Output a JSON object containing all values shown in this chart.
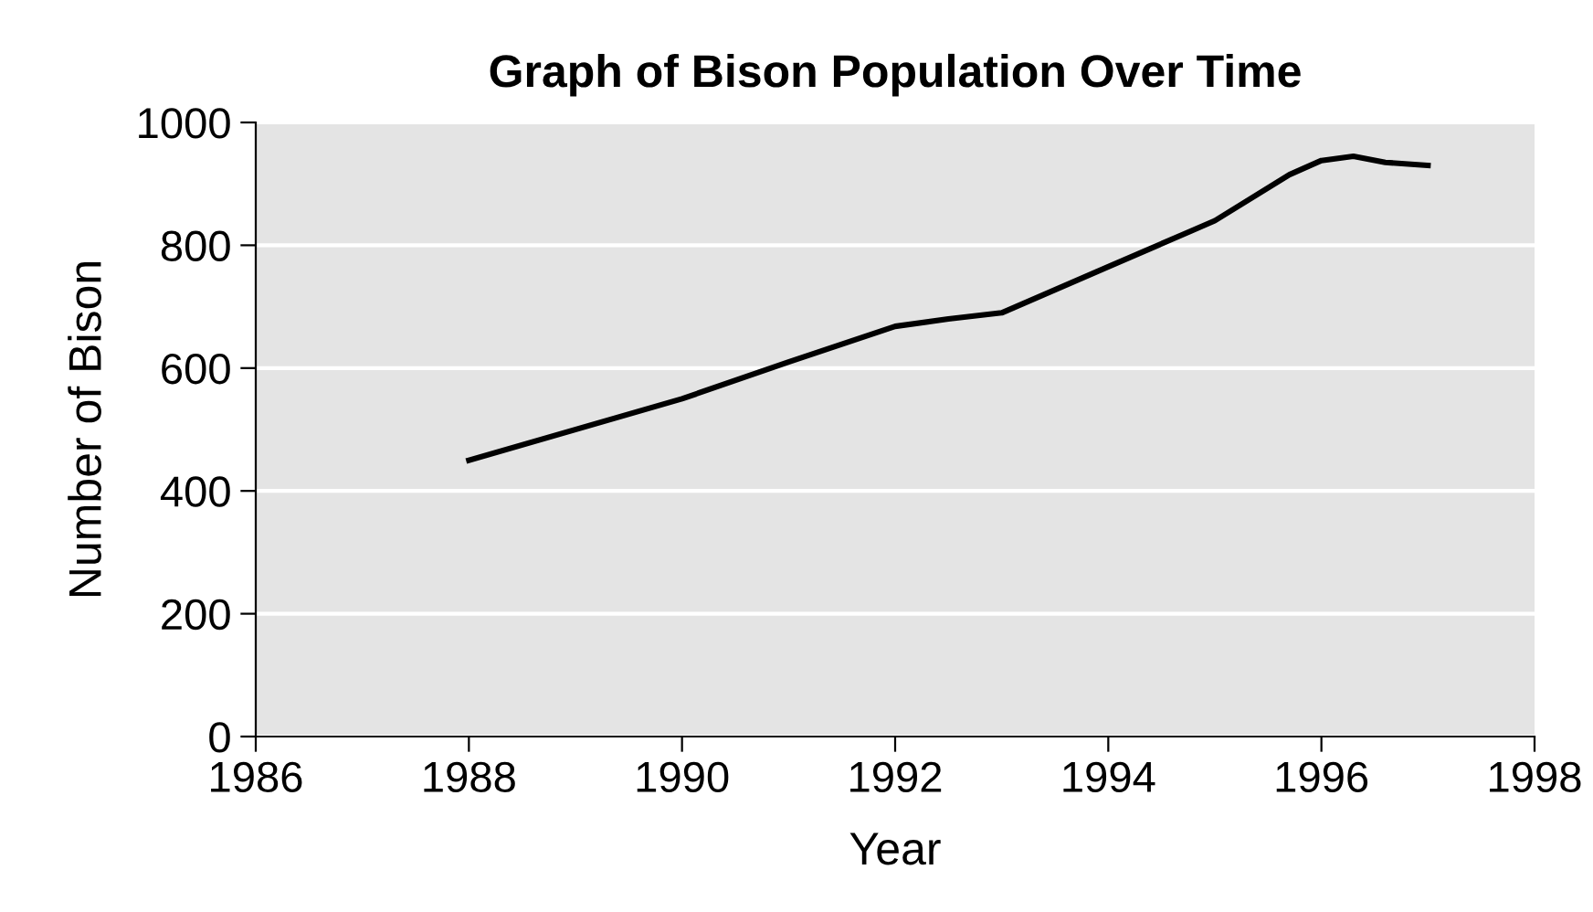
{
  "chart_data": {
    "type": "line",
    "title": "Graph of Bison Population Over Time",
    "xlabel": "Year",
    "ylabel": "Number of Bison",
    "series": [
      {
        "color": "#000000",
        "x": [
          1988,
          1990,
          1991,
          1992,
          1992.5,
          1993,
          1994,
          1995,
          1995.7,
          1996,
          1996.3,
          1996.6,
          1997
        ],
        "values": [
          450,
          550,
          610,
          668,
          680,
          690,
          765,
          840,
          915,
          938,
          945,
          935,
          930
        ]
      }
    ],
    "xlim": [
      1986,
      1998
    ],
    "xticks": [
      1986,
      1988,
      1990,
      1992,
      1994,
      1996,
      1998
    ],
    "ylim": [
      0,
      1000
    ],
    "yticks": [
      0,
      200,
      400,
      600,
      800,
      1000
    ],
    "grid": "y",
    "legend": false,
    "marker": "none",
    "line_style": "solid"
  }
}
